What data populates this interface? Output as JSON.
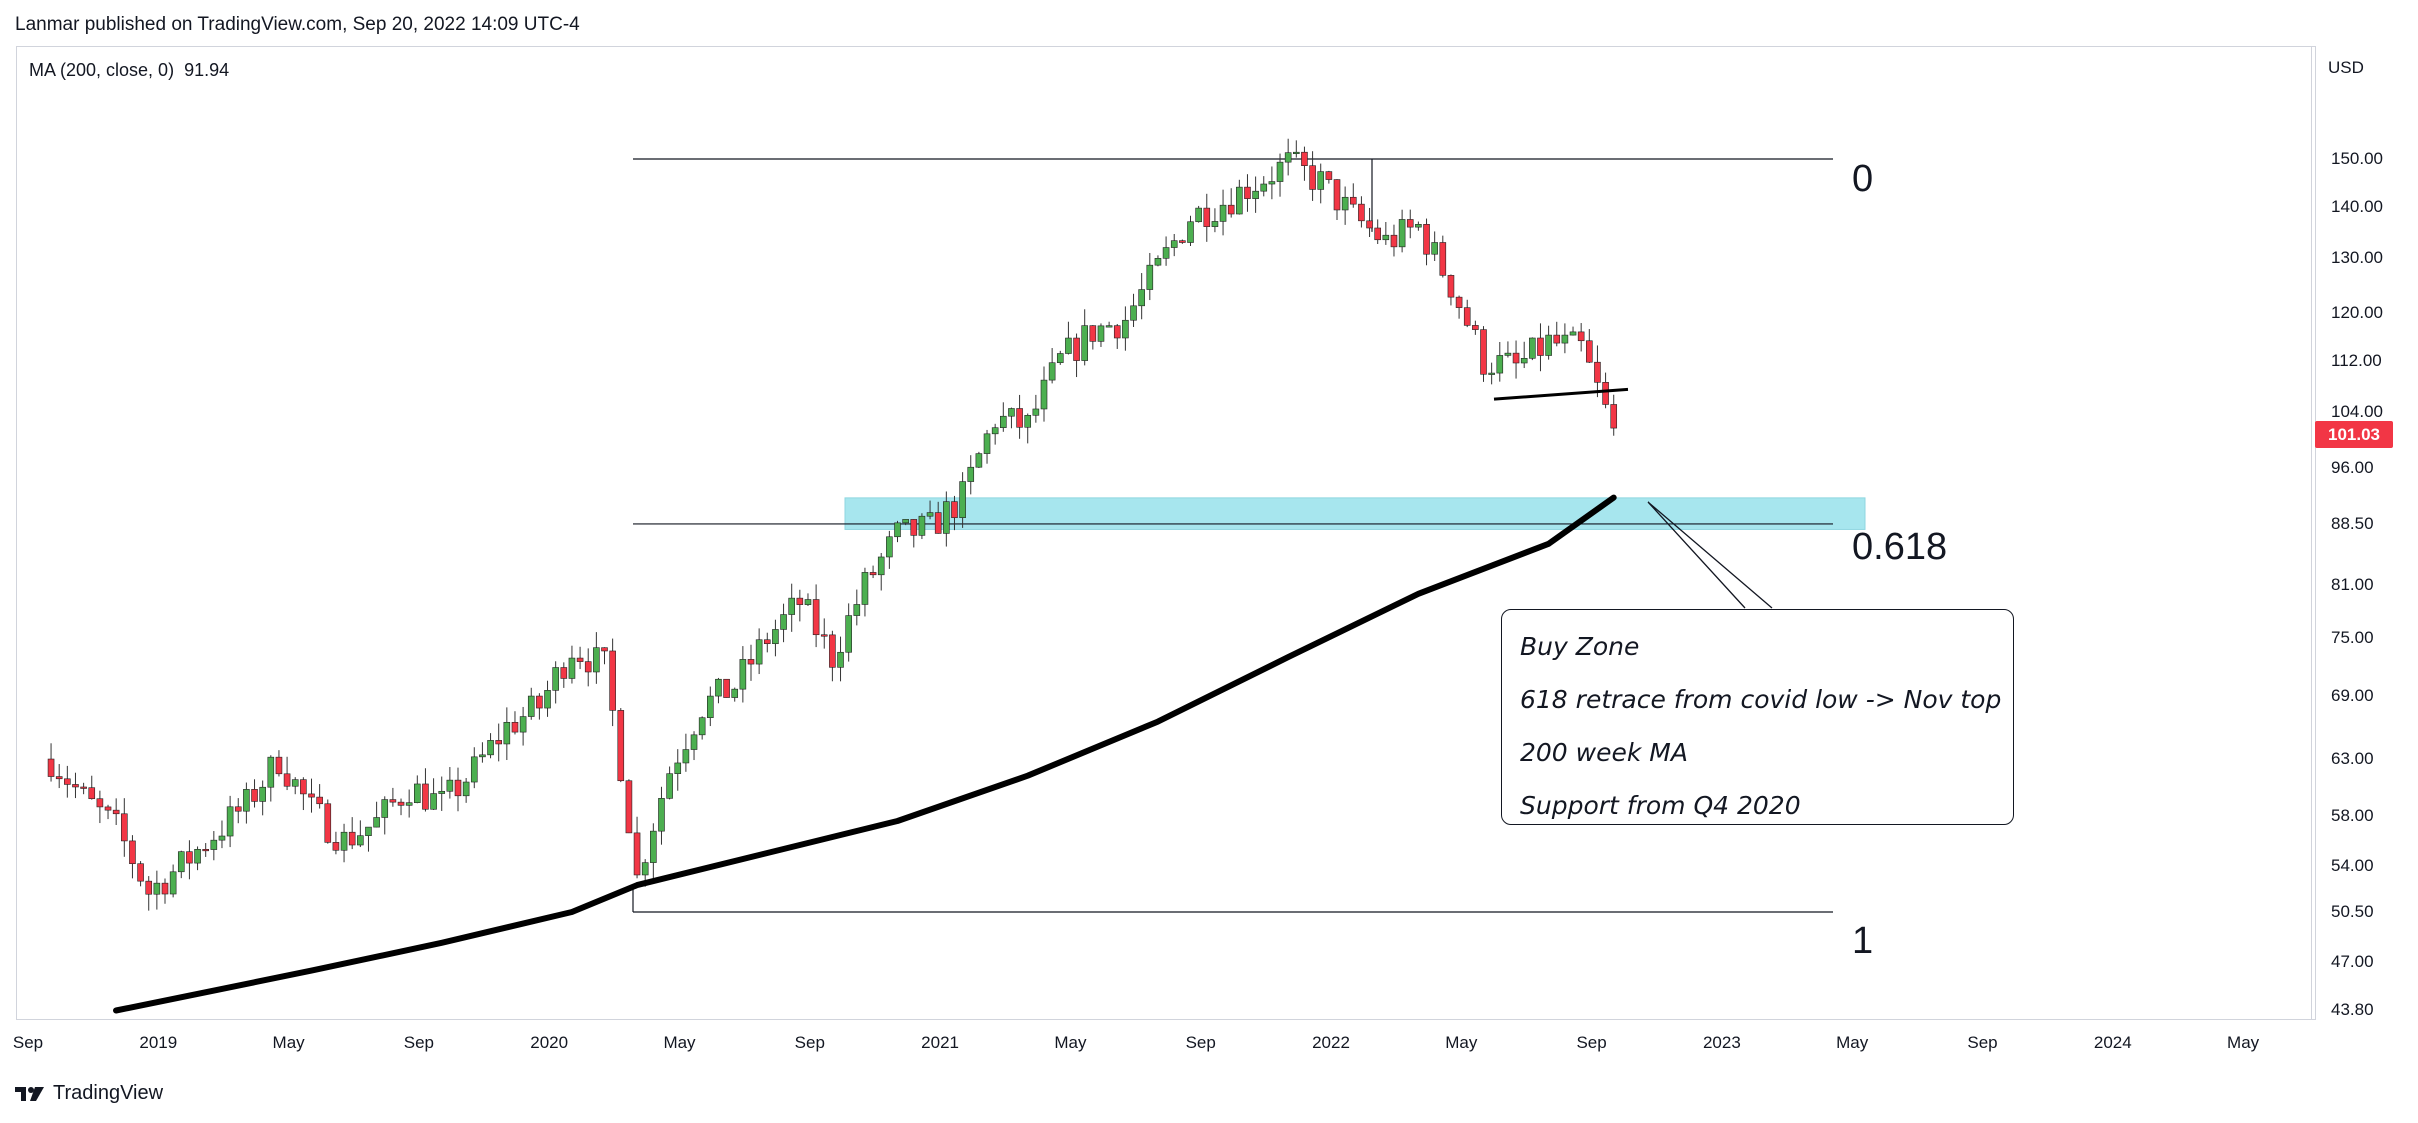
{
  "header": {
    "text": "Lanmar published on TradingView.com, Sep 20, 2022 14:09 UTC-4"
  },
  "indicator": {
    "label": "MA (200, close, 0)",
    "value": "91.94"
  },
  "currency": "USD",
  "last_price": "101.03",
  "fib_labels": {
    "level_0": "0",
    "level_0618": "0.618",
    "level_1": "1"
  },
  "note": {
    "lines": [
      "Buy Zone",
      "618 retrace from covid low -> Nov top",
      "200 week MA",
      "Support from Q4 2020"
    ]
  },
  "footer": {
    "brand": "TradingView"
  },
  "colors": {
    "up": "#4caf50",
    "down": "#f23645",
    "zone": "#a7e6ee",
    "ma": "#000000",
    "badge": "#f23645"
  },
  "chart_data": {
    "type": "candlestick",
    "scale": "log",
    "y_ticks": [
      "150.00",
      "140.00",
      "130.00",
      "120.00",
      "112.00",
      "104.00",
      "96.00",
      "88.50",
      "81.00",
      "75.00",
      "69.00",
      "63.00",
      "58.00",
      "54.00",
      "50.50",
      "47.00",
      "43.80"
    ],
    "x_ticks": [
      "Sep",
      "2019",
      "May",
      "Sep",
      "2020",
      "May",
      "Sep",
      "2021",
      "May",
      "Sep",
      "2022",
      "May",
      "Sep",
      "2023",
      "May",
      "Sep",
      "2024",
      "May"
    ],
    "price_series": [
      {
        "date": "2018-09",
        "close": 63.0
      },
      {
        "date": "2018-10",
        "close": 59.5
      },
      {
        "date": "2018-11",
        "close": 57.0
      },
      {
        "date": "2018-12",
        "close": 52.0
      },
      {
        "date": "2019-01",
        "close": 54.0
      },
      {
        "date": "2019-02",
        "close": 56.5
      },
      {
        "date": "2019-03",
        "close": 59.0
      },
      {
        "date": "2019-04",
        "close": 63.0
      },
      {
        "date": "2019-05",
        "close": 58.5
      },
      {
        "date": "2019-06",
        "close": 56.0
      },
      {
        "date": "2019-07",
        "close": 57.5
      },
      {
        "date": "2019-08",
        "close": 60.5
      },
      {
        "date": "2019-09",
        "close": 59.0
      },
      {
        "date": "2019-10",
        "close": 62.0
      },
      {
        "date": "2019-11",
        "close": 66.0
      },
      {
        "date": "2019-12",
        "close": 68.0
      },
      {
        "date": "2020-01",
        "close": 74.0
      },
      {
        "date": "2020-02",
        "close": 72.0
      },
      {
        "date": "2020-03",
        "close": 53.0
      },
      {
        "date": "2020-04",
        "close": 62.0
      },
      {
        "date": "2020-05",
        "close": 68.0
      },
      {
        "date": "2020-06",
        "close": 70.0
      },
      {
        "date": "2020-07",
        "close": 75.0
      },
      {
        "date": "2020-08",
        "close": 79.0
      },
      {
        "date": "2020-09",
        "close": 73.0
      },
      {
        "date": "2020-10",
        "close": 81.0
      },
      {
        "date": "2020-11",
        "close": 87.0
      },
      {
        "date": "2020-12",
        "close": 88.0
      },
      {
        "date": "2021-01",
        "close": 92.0
      },
      {
        "date": "2021-02",
        "close": 103.0
      },
      {
        "date": "2021-03",
        "close": 102.0
      },
      {
        "date": "2021-04",
        "close": 112.0
      },
      {
        "date": "2021-05",
        "close": 117.0
      },
      {
        "date": "2021-06",
        "close": 119.0
      },
      {
        "date": "2021-07",
        "close": 128.0
      },
      {
        "date": "2021-08",
        "close": 138.0
      },
      {
        "date": "2021-09",
        "close": 141.0
      },
      {
        "date": "2021-10",
        "close": 145.0
      },
      {
        "date": "2021-11",
        "close": 149.0
      },
      {
        "date": "2021-12",
        "close": 145.0
      },
      {
        "date": "2022-01",
        "close": 138.0
      },
      {
        "date": "2022-02",
        "close": 133.0
      },
      {
        "date": "2022-03",
        "close": 136.0
      },
      {
        "date": "2022-04",
        "close": 125.0
      },
      {
        "date": "2022-05",
        "close": 112.0
      },
      {
        "date": "2022-06",
        "close": 111.0
      },
      {
        "date": "2022-07",
        "close": 115.0
      },
      {
        "date": "2022-08",
        "close": 114.0
      },
      {
        "date": "2022-09",
        "close": 101.0
      }
    ],
    "ma_200": [
      {
        "date": "2018-11",
        "value": 43.8
      },
      {
        "date": "2019-05",
        "value": 46.4
      },
      {
        "date": "2019-09",
        "value": 48.3
      },
      {
        "date": "2020-01",
        "value": 50.5
      },
      {
        "date": "2020-03",
        "value": 52.5
      },
      {
        "date": "2020-07",
        "value": 55.0
      },
      {
        "date": "2020-11",
        "value": 57.6
      },
      {
        "date": "2021-03",
        "value": 61.5
      },
      {
        "date": "2021-07",
        "value": 66.5
      },
      {
        "date": "2021-11",
        "value": 73.0
      },
      {
        "date": "2022-03",
        "value": 80.0
      },
      {
        "date": "2022-07",
        "value": 86.0
      },
      {
        "date": "2022-09",
        "value": 91.94
      }
    ],
    "fib_levels": [
      {
        "level": "0",
        "price": 150.0
      },
      {
        "level": "0.618",
        "price": 88.5
      },
      {
        "level": "1",
        "price": 50.5
      }
    ],
    "buy_zone": {
      "top": 91.9,
      "bottom": 87.8
    },
    "neckline": {
      "from": {
        "date": "2022-05",
        "value": 106.0
      },
      "to": {
        "date": "2022-09",
        "value": 107.5
      }
    }
  }
}
